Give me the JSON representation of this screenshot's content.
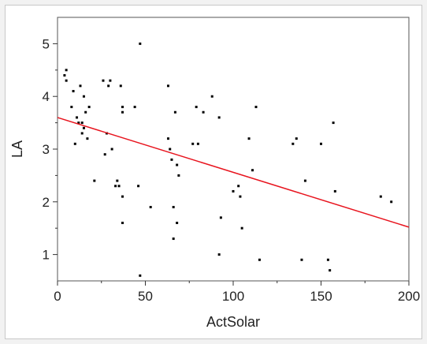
{
  "chart_data": {
    "type": "scatter",
    "xlabel": "ActSolar",
    "ylabel": "LA",
    "xlim": [
      0,
      200
    ],
    "ylim": [
      0.5,
      5.5
    ],
    "xticks": [
      "0",
      "50",
      "100",
      "150",
      "200"
    ],
    "yticks": [
      "1",
      "2",
      "3",
      "4",
      "5"
    ],
    "grid": false,
    "points": [
      [
        4,
        4.4
      ],
      [
        5,
        4.5
      ],
      [
        5,
        4.3
      ],
      [
        8,
        3.8
      ],
      [
        9,
        4.1
      ],
      [
        10,
        3.1
      ],
      [
        11,
        3.6
      ],
      [
        12,
        3.5
      ],
      [
        13,
        4.2
      ],
      [
        14,
        3.3
      ],
      [
        14,
        3.5
      ],
      [
        15,
        4.0
      ],
      [
        15,
        3.4
      ],
      [
        16,
        3.7
      ],
      [
        17,
        3.2
      ],
      [
        18,
        3.8
      ],
      [
        21,
        2.4
      ],
      [
        26,
        4.3
      ],
      [
        27,
        2.9
      ],
      [
        28,
        3.3
      ],
      [
        29,
        4.2
      ],
      [
        30,
        4.3
      ],
      [
        31,
        3.0
      ],
      [
        33,
        2.3
      ],
      [
        34,
        2.4
      ],
      [
        35,
        2.3
      ],
      [
        36,
        4.2
      ],
      [
        37,
        3.8
      ],
      [
        37,
        3.7
      ],
      [
        37,
        1.6
      ],
      [
        37,
        2.1
      ],
      [
        44,
        3.8
      ],
      [
        46,
        2.3
      ],
      [
        47,
        5.0
      ],
      [
        47,
        0.6
      ],
      [
        53,
        1.9
      ],
      [
        63,
        4.2
      ],
      [
        63,
        3.2
      ],
      [
        64,
        3.0
      ],
      [
        65,
        2.8
      ],
      [
        66,
        1.9
      ],
      [
        66,
        1.3
      ],
      [
        67,
        3.7
      ],
      [
        68,
        2.7
      ],
      [
        68,
        1.6
      ],
      [
        69,
        2.5
      ],
      [
        77,
        3.1
      ],
      [
        79,
        3.8
      ],
      [
        80,
        3.1
      ],
      [
        83,
        3.7
      ],
      [
        88,
        4.0
      ],
      [
        92,
        3.6
      ],
      [
        92,
        1.0
      ],
      [
        93,
        1.7
      ],
      [
        100,
        2.2
      ],
      [
        103,
        2.3
      ],
      [
        104,
        2.1
      ],
      [
        105,
        1.5
      ],
      [
        109,
        3.2
      ],
      [
        111,
        2.6
      ],
      [
        113,
        3.8
      ],
      [
        115,
        0.9
      ],
      [
        134,
        3.1
      ],
      [
        136,
        3.2
      ],
      [
        139,
        0.9
      ],
      [
        141,
        2.4
      ],
      [
        150,
        3.1
      ],
      [
        154,
        0.9
      ],
      [
        155,
        0.7
      ],
      [
        157,
        3.5
      ],
      [
        158,
        2.2
      ],
      [
        184,
        2.1
      ],
      [
        190,
        2.0
      ]
    ],
    "fit_line": {
      "x": [
        0,
        200
      ],
      "y": [
        3.6,
        1.52
      ],
      "color": "#e8141e"
    },
    "point_color": "#000000"
  }
}
